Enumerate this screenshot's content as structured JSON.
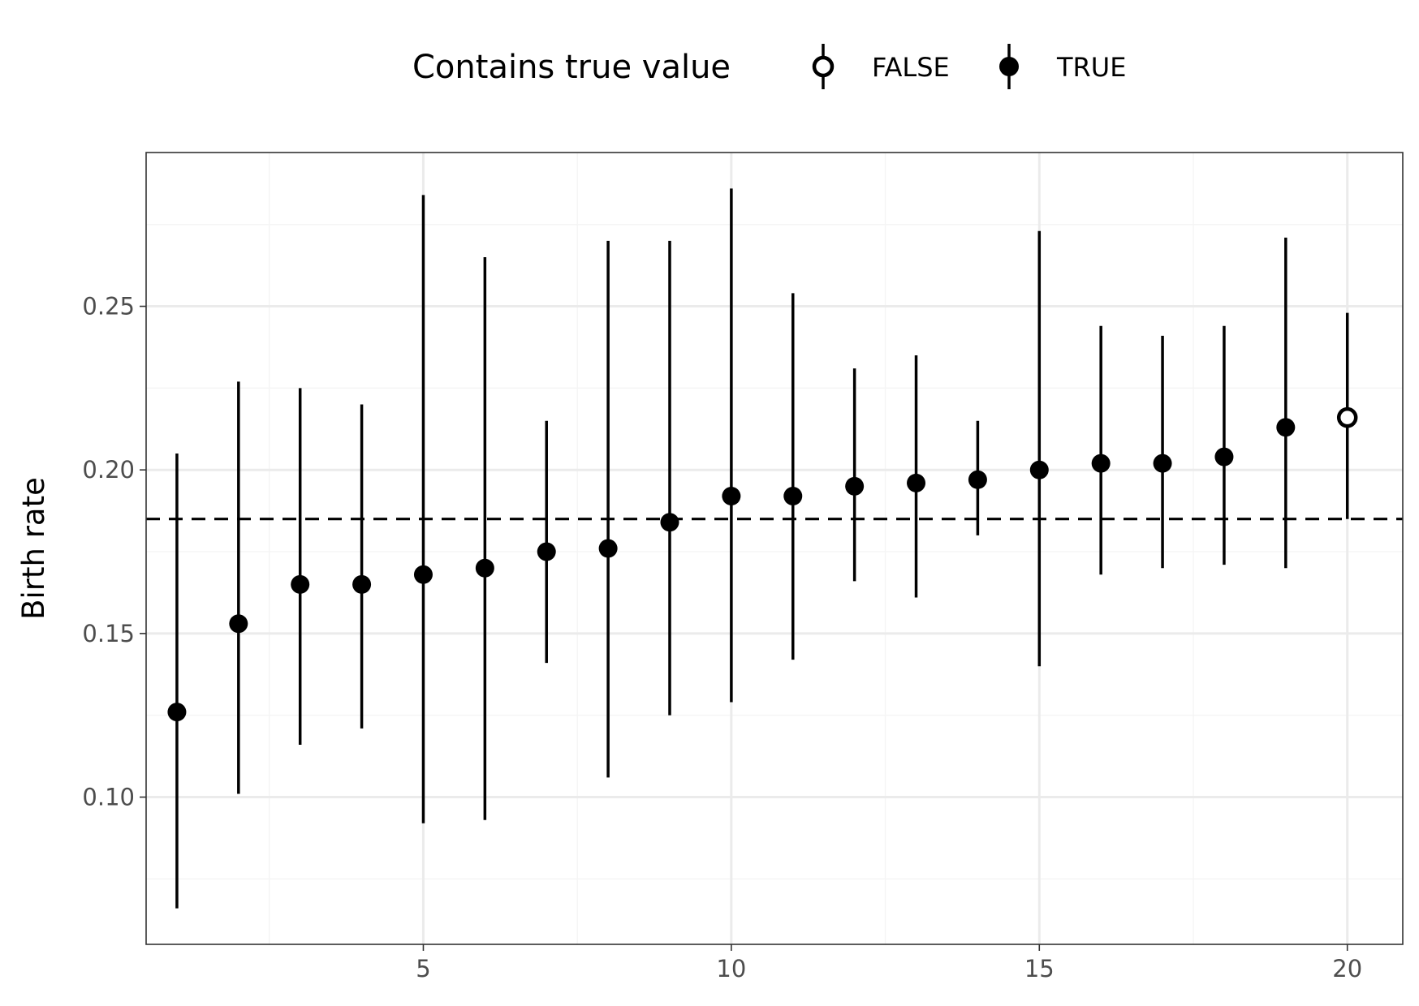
{
  "chart_data": {
    "type": "scatter",
    "subtype": "pointrange",
    "title": "",
    "xlabel": "",
    "ylabel": "Birth rate",
    "xlim": [
      0.5,
      20.9
    ],
    "ylim": [
      0.055,
      0.297
    ],
    "x_ticks": [
      5,
      10,
      15,
      20
    ],
    "x_tick_labels": [
      "5",
      "10",
      "15",
      "20"
    ],
    "x_minor_ticks": [
      2.5,
      7.5,
      12.5,
      17.5
    ],
    "y_ticks": [
      0.1,
      0.15,
      0.2,
      0.25
    ],
    "y_tick_labels": [
      "0.10",
      "0.15",
      "0.20",
      "0.25"
    ],
    "y_minor_ticks": [
      0.075,
      0.125,
      0.175,
      0.225,
      0.275
    ],
    "grid": true,
    "reference_line": {
      "y": 0.185,
      "style": "dashed"
    },
    "legend": {
      "title": "Contains true value",
      "position": "top",
      "entries": [
        {
          "label": "FALSE",
          "marker": "open-circle"
        },
        {
          "label": "TRUE",
          "marker": "filled-circle"
        }
      ]
    },
    "points": [
      {
        "x": 1,
        "y": 0.126,
        "lower": 0.066,
        "upper": 0.205,
        "contains": true
      },
      {
        "x": 2,
        "y": 0.153,
        "lower": 0.101,
        "upper": 0.227,
        "contains": true
      },
      {
        "x": 3,
        "y": 0.165,
        "lower": 0.116,
        "upper": 0.225,
        "contains": true
      },
      {
        "x": 4,
        "y": 0.165,
        "lower": 0.121,
        "upper": 0.22,
        "contains": true
      },
      {
        "x": 5,
        "y": 0.168,
        "lower": 0.092,
        "upper": 0.284,
        "contains": true
      },
      {
        "x": 6,
        "y": 0.17,
        "lower": 0.093,
        "upper": 0.265,
        "contains": true
      },
      {
        "x": 7,
        "y": 0.175,
        "lower": 0.141,
        "upper": 0.215,
        "contains": true
      },
      {
        "x": 8,
        "y": 0.176,
        "lower": 0.106,
        "upper": 0.27,
        "contains": true
      },
      {
        "x": 9,
        "y": 0.184,
        "lower": 0.125,
        "upper": 0.27,
        "contains": true
      },
      {
        "x": 10,
        "y": 0.192,
        "lower": 0.129,
        "upper": 0.286,
        "contains": true
      },
      {
        "x": 11,
        "y": 0.192,
        "lower": 0.142,
        "upper": 0.254,
        "contains": true
      },
      {
        "x": 12,
        "y": 0.195,
        "lower": 0.166,
        "upper": 0.231,
        "contains": true
      },
      {
        "x": 13,
        "y": 0.196,
        "lower": 0.161,
        "upper": 0.235,
        "contains": true
      },
      {
        "x": 14,
        "y": 0.197,
        "lower": 0.18,
        "upper": 0.215,
        "contains": true
      },
      {
        "x": 15,
        "y": 0.2,
        "lower": 0.14,
        "upper": 0.273,
        "contains": true
      },
      {
        "x": 16,
        "y": 0.202,
        "lower": 0.168,
        "upper": 0.244,
        "contains": true
      },
      {
        "x": 17,
        "y": 0.202,
        "lower": 0.17,
        "upper": 0.241,
        "contains": true
      },
      {
        "x": 18,
        "y": 0.204,
        "lower": 0.171,
        "upper": 0.244,
        "contains": true
      },
      {
        "x": 19,
        "y": 0.213,
        "lower": 0.17,
        "upper": 0.271,
        "contains": true
      },
      {
        "x": 20,
        "y": 0.216,
        "lower": 0.185,
        "upper": 0.248,
        "contains": false
      }
    ],
    "colors": {
      "point": "#000000",
      "grid_major": "#ebebeb",
      "grid_minor": "#f5f5f5",
      "panel_border": "#333333",
      "tick_label": "#4d4d4d"
    }
  }
}
